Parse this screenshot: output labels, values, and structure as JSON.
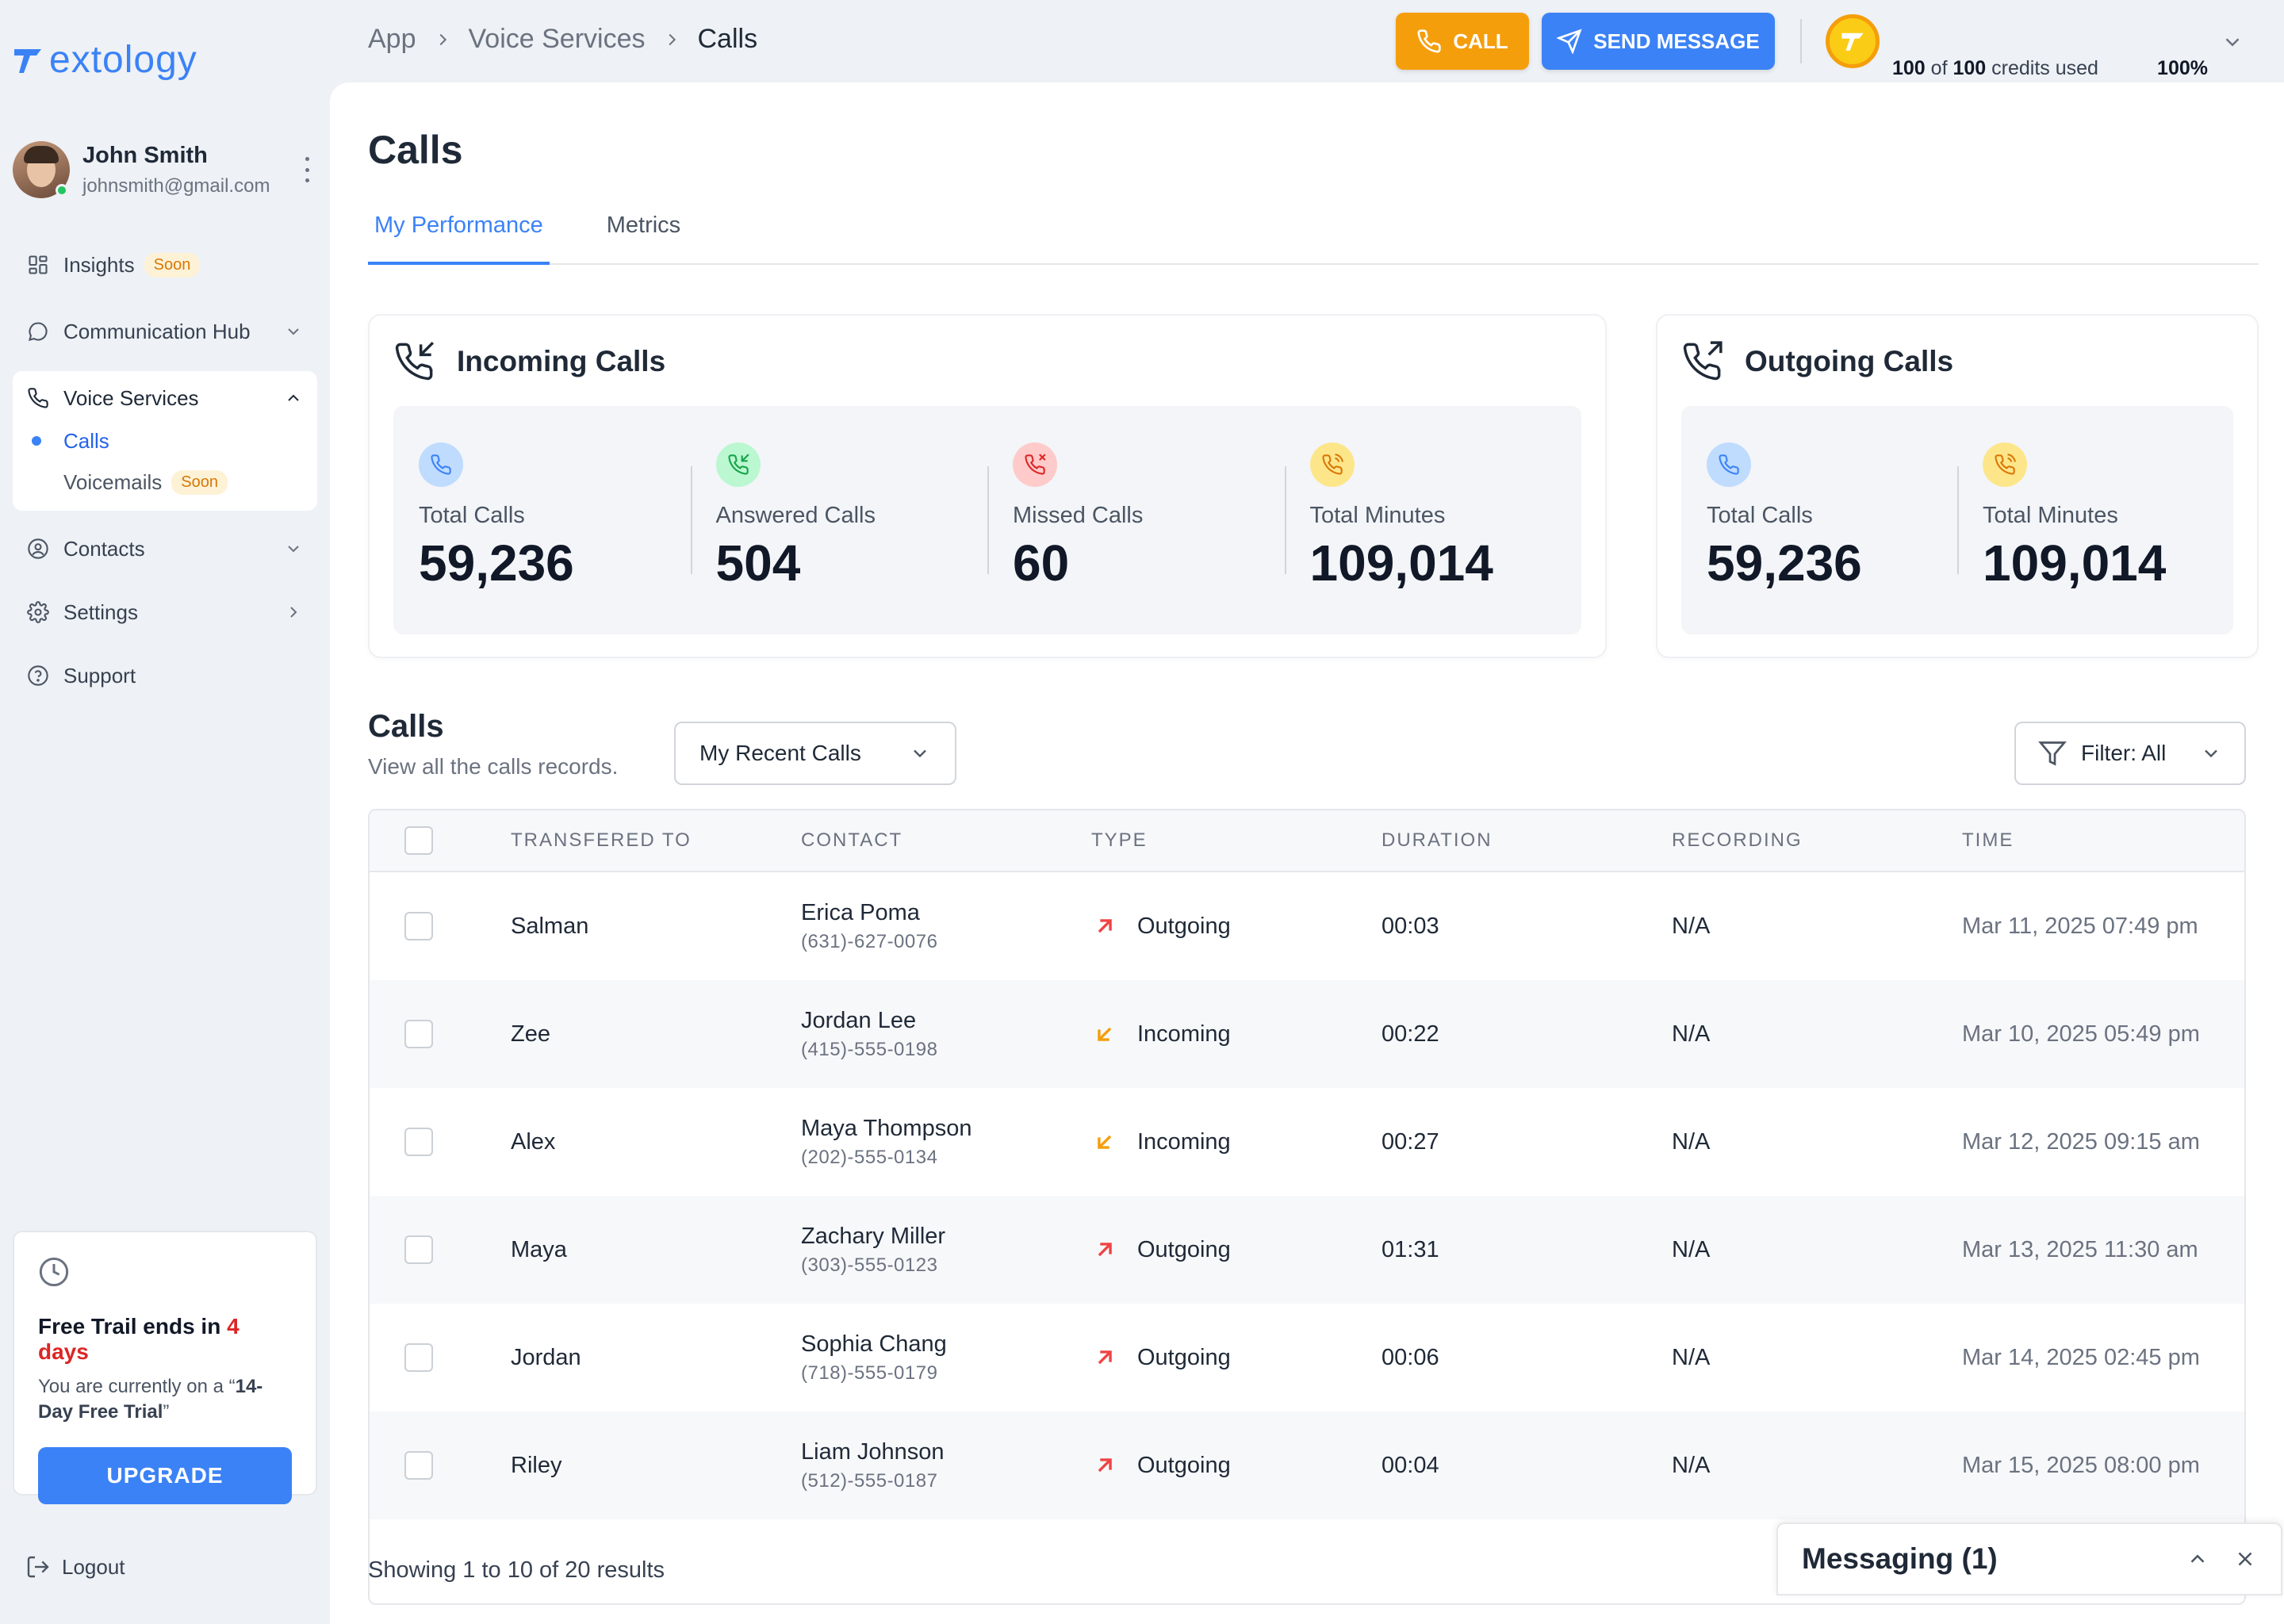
{
  "brand": {
    "logo_text": "extology",
    "accent": "#3b82f6"
  },
  "user": {
    "name": "John Smith",
    "email": "johnsmith@gmail.com",
    "online": true
  },
  "sidebar": {
    "items": [
      {
        "label": "Insights",
        "badge": "Soon",
        "icon": "grid-icon"
      },
      {
        "label": "Communication Hub",
        "icon": "chat-icon"
      },
      {
        "label": "Voice Services",
        "icon": "phone-icon",
        "expanded": true,
        "children": [
          {
            "label": "Calls",
            "active": true
          },
          {
            "label": "Voicemails",
            "badge": "Soon"
          }
        ]
      },
      {
        "label": "Contacts",
        "icon": "contact-icon"
      },
      {
        "label": "Settings",
        "icon": "gear-icon"
      },
      {
        "label": "Support",
        "icon": "help-icon"
      }
    ],
    "trial": {
      "title_prefix": "Free Trail ends in",
      "days": "4 days",
      "desc_prefix": "You are currently on a “",
      "desc_bold": "14-Day Free Trial",
      "desc_suffix": "”",
      "button": "UPGRADE"
    },
    "logout": "Logout"
  },
  "topbar": {
    "breadcrumb": [
      "App",
      "Voice Services",
      "Calls"
    ],
    "call_button": "CALL",
    "message_button": "SEND MESSAGE",
    "credits": {
      "used": "100",
      "of_label": "of",
      "total": "100",
      "suffix": "credits used",
      "percent_text": "100%",
      "percent": 100
    }
  },
  "page": {
    "title": "Calls",
    "tabs": [
      {
        "label": "My Performance",
        "active": true
      },
      {
        "label": "Metrics"
      }
    ]
  },
  "incoming": {
    "title": "Incoming Calls",
    "stats": [
      {
        "label": "Total Calls",
        "value": "59,236",
        "icon": "phone-icon",
        "color": "#bfdbfe"
      },
      {
        "label": "Answered Calls",
        "value": "504",
        "icon": "phone-incoming-icon",
        "color": "#bbf7d0"
      },
      {
        "label": "Missed Calls",
        "value": "60",
        "icon": "phone-missed-icon",
        "color": "#fecaca"
      },
      {
        "label": "Total Minutes",
        "value": "109,014",
        "icon": "phone-ringing-icon",
        "color": "#fde68a"
      }
    ]
  },
  "outgoing": {
    "title": "Outgoing Calls",
    "stats": [
      {
        "label": "Total Calls",
        "value": "59,236",
        "icon": "phone-icon",
        "color": "#bfdbfe"
      },
      {
        "label": "Total Minutes",
        "value": "109,014",
        "icon": "phone-ringing-icon",
        "color": "#fde68a"
      }
    ]
  },
  "calls": {
    "title": "Calls",
    "subtitle": "View all the calls records.",
    "dropdown": "My Recent Calls",
    "filter": "Filter: All",
    "headers": [
      "TRANSFERED TO",
      "CONTACT",
      "TYPE",
      "DURATION",
      "RECORDING",
      "TIME"
    ],
    "rows": [
      {
        "transfered_to": "Salman",
        "contact": "Erica Poma",
        "phone": "(631)-627-0076",
        "type": "Outgoing",
        "duration": "00:03",
        "recording": "N/A",
        "time": "Mar 11, 2025 07:49 pm"
      },
      {
        "transfered_to": "Zee",
        "contact": "Jordan Lee",
        "phone": "(415)-555-0198",
        "type": "Incoming",
        "duration": "00:22",
        "recording": "N/A",
        "time": "Mar 10, 2025 05:49 pm"
      },
      {
        "transfered_to": "Alex",
        "contact": "Maya Thompson",
        "phone": "(202)-555-0134",
        "type": "Incoming",
        "duration": "00:27",
        "recording": "N/A",
        "time": "Mar 12, 2025 09:15 am"
      },
      {
        "transfered_to": "Maya",
        "contact": "Zachary Miller",
        "phone": "(303)-555-0123",
        "type": "Outgoing",
        "duration": "01:31",
        "recording": "N/A",
        "time": "Mar 13, 2025 11:30 am"
      },
      {
        "transfered_to": "Jordan",
        "contact": "Sophia Chang",
        "phone": "(718)-555-0179",
        "type": "Outgoing",
        "duration": "00:06",
        "recording": "N/A",
        "time": "Mar 14, 2025 02:45 pm"
      },
      {
        "transfered_to": "Riley",
        "contact": "Liam Johnson",
        "phone": "(512)-555-0187",
        "type": "Outgoing",
        "duration": "00:04",
        "recording": "N/A",
        "time": "Mar 15, 2025 08:00 pm"
      }
    ],
    "showing": "Showing 1 to 10 of 20 results"
  },
  "messaging": {
    "title": "Messaging (1)"
  },
  "colors": {
    "outgoing": "#ef4444",
    "incoming": "#f59e0b",
    "call_button": "#f59e0b",
    "primary": "#3b82f6"
  }
}
